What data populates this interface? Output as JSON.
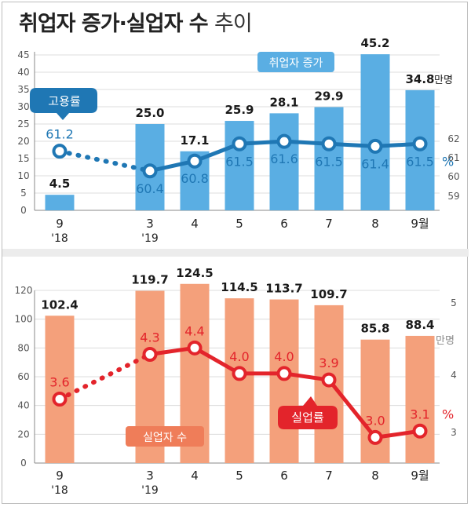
{
  "title": {
    "main": "취업자 증가·실업자 수",
    "suffix": "추이"
  },
  "chart_data": [
    {
      "type": "bar",
      "categories": [
        "9",
        "3",
        "4",
        "5",
        "6",
        "7",
        "8",
        "9월"
      ],
      "category_sub": [
        "'18",
        "'19",
        "",
        "",
        "",
        "",
        "",
        ""
      ],
      "ylim": [
        0,
        45
      ],
      "yticks": [
        0,
        5,
        10,
        15,
        20,
        25,
        30,
        35,
        40,
        45
      ],
      "series": [
        {
          "name": "취업자 증가",
          "values": [
            4.5,
            25.0,
            17.1,
            25.9,
            28.1,
            29.9,
            45.2,
            34.8
          ],
          "color": "#5aaee3"
        },
        {
          "name": "고용률",
          "values": [
            61.2,
            60.4,
            60.8,
            61.5,
            61.6,
            61.5,
            61.4,
            61.5
          ],
          "color": "#1f77b4"
        }
      ],
      "bar_labels": [
        "4.5",
        "25.0",
        "17.1",
        "25.9",
        "28.1",
        "29.9",
        "45.2",
        "34.8"
      ],
      "unit_bar": "만명",
      "line_labels": [
        "61.2",
        "60.4",
        "60.8",
        "61.5",
        "61.6",
        "61.5",
        "61.4",
        "61.5"
      ],
      "unit_line": "%",
      "y2lim": [
        58.8,
        62.4
      ],
      "y2ticks": [
        "59",
        "60",
        "61",
        "62"
      ]
    },
    {
      "type": "bar",
      "categories": [
        "9",
        "3",
        "4",
        "5",
        "6",
        "7",
        "8",
        "9월"
      ],
      "category_sub": [
        "'18",
        "'19",
        "",
        "",
        "",
        "",
        "",
        ""
      ],
      "ylim": [
        0,
        120
      ],
      "yticks": [
        0,
        20,
        40,
        60,
        80,
        100,
        120
      ],
      "series": [
        {
          "name": "실업자 수",
          "values": [
            102.4,
            119.7,
            124.5,
            114.5,
            113.7,
            109.7,
            85.8,
            88.4
          ],
          "color": "#f4a07b"
        },
        {
          "name": "실업률",
          "values": [
            3.6,
            4.3,
            4.4,
            4.0,
            4.0,
            3.9,
            3.0,
            3.1
          ],
          "color": "#e3242b"
        }
      ],
      "bar_labels": [
        "102.4",
        "119.7",
        "124.5",
        "114.5",
        "113.7",
        "109.7",
        "85.8",
        "88.4"
      ],
      "unit_bar": "만명",
      "line_labels": [
        "3.6",
        "4.3",
        "4.4",
        "4.0",
        "4.0",
        "3.9",
        "3.0",
        "3.1"
      ],
      "unit_line": "%",
      "y2lim": [
        2.6,
        5.3
      ],
      "y2ticks": [
        "3",
        "4",
        "5"
      ]
    }
  ]
}
